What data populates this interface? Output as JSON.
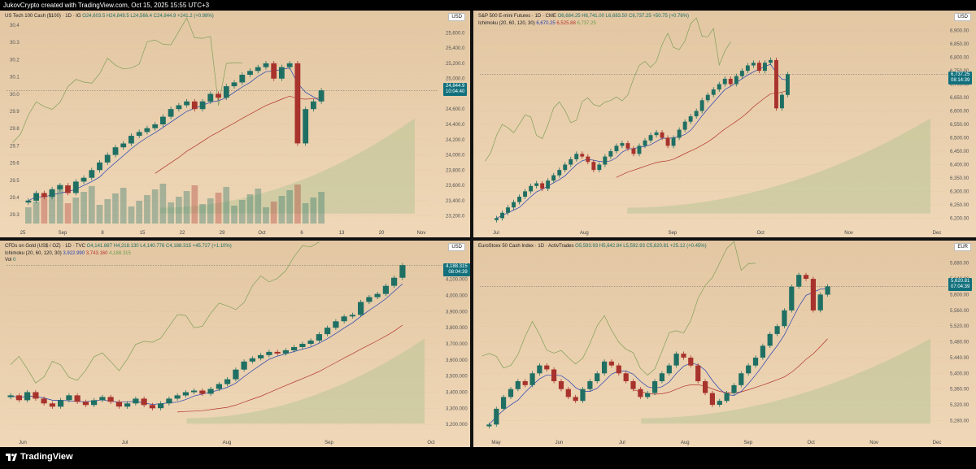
{
  "header": {
    "title": "JukovCrypto created with TradingView.com, Oct 15, 2025 15:55 UTC+3"
  },
  "footer": {
    "brand": "TradingView"
  },
  "colors": {
    "up": "#1f6f63",
    "down": "#a8322c",
    "tenkan": "#2541b2",
    "kijun": "#b2352d",
    "chikou": "#7fa05a",
    "cloud": "#b9c497",
    "bg": "#e9ceac"
  },
  "panes": [
    {
      "id": "ndx",
      "legend_line1": "US Tech 100 Cash ($100) · 1D · IG",
      "ohlc": "O24,603.5 H24,849.5 L24,566.4 C24,844.9 +241.2 (+0.98%)",
      "currency": "USD",
      "price_tag": "24,844.9",
      "price_tag_time": "10:04:40",
      "left_axis": [
        "30.4",
        "30.3",
        "30.2",
        "30.1",
        "30.0",
        "29.9",
        "29.8",
        "29.7",
        "29.6",
        "29.5",
        "29.4",
        "29.3"
      ],
      "right_axis": [
        "25,600.0",
        "25,400.0",
        "25,200.0",
        "25,000.0",
        "24,800.0",
        "24,600.0",
        "24,400.0",
        "24,200.0",
        "24,000.0",
        "23,800.0",
        "23,600.0",
        "23,400.0",
        "23,200.0"
      ],
      "x_labels": [
        "25",
        "Sep",
        "8",
        "15",
        "22",
        "29",
        "Oct",
        "6",
        "13",
        "20",
        "Nov"
      ]
    },
    {
      "id": "es",
      "legend_line1": "S&P 500 E-mini Futures · 1D · CME",
      "ohlc": "O6,684.25 H6,741.00 L6,683.50 C6,737.25 +50.75 (+0.76%)",
      "ichimoku_name": "Ichimoku (20, 60, 120, 30)",
      "ichimoku_v1": "6,670.25",
      "ichimoku_v2": "6,525.88",
      "ichimoku_v3": "6,737.25",
      "currency": "USD",
      "price_tag": "6,737.25",
      "price_tag_time": "08:14:39",
      "right_axis": [
        "6,900.00",
        "6,850.00",
        "6,800.00",
        "6,750.00",
        "6,700.00",
        "6,650.00",
        "6,600.00",
        "6,550.00",
        "6,500.00",
        "6,450.00",
        "6,400.00",
        "6,350.00",
        "6,300.00",
        "6,250.00",
        "6,200.00"
      ],
      "x_labels": [
        "Jul",
        "Aug",
        "Sep",
        "Oct",
        "Nov",
        "Dec"
      ]
    },
    {
      "id": "gold",
      "legend_line1": "CFDs on Gold (US$ / OZ) · 1D · TVC",
      "ohlc": "O4,141.887 H4,218.130 L4,140.776 C4,188.315 +45.727 (+1.10%)",
      "ichimoku_name": "Ichimoku (20, 60, 120, 30)",
      "ichimoku_v1": "3,922.990",
      "ichimoku_v2": "3,743.160",
      "ichimoku_v3": "4,188.315",
      "vol_label": "Vol",
      "vol_value": "0",
      "currency": "USD",
      "price_tag": "4,188.315",
      "price_tag_time": "08:04:39",
      "right_axis": [
        "4,100.000",
        "4,000.000",
        "3,900.000",
        "3,800.000",
        "3,700.000",
        "3,600.000",
        "3,500.000",
        "3,400.000",
        "3,300.000",
        "3,200.000"
      ],
      "x_labels": [
        "Jun",
        "Jul",
        "Aug",
        "Sep",
        "Oct"
      ]
    },
    {
      "id": "sx5e",
      "legend_line1": "EuroStoxx 50 Cash Index · 1D · ActivTrades",
      "ohlc": "O5,593.93 H5,642.84 L5,592.93 C5,620.81 +25.12 (+0.45%)",
      "currency": "EUR",
      "price_tag": "5,620.81",
      "price_tag_time": "07:04:39",
      "right_axis": [
        "5,680.00",
        "5,640.00",
        "5,600.00",
        "5,560.00",
        "5,520.00",
        "5,480.00",
        "5,440.00",
        "5,400.00",
        "5,360.00",
        "5,320.00",
        "5,280.00"
      ],
      "x_labels": [
        "May",
        "Jun",
        "Jul",
        "Aug",
        "Sep",
        "Oct",
        "Nov",
        "Dec"
      ]
    }
  ],
  "chart_data": [
    {
      "type": "candlestick",
      "title": "US Tech 100 Cash ($100) · 1D · IG",
      "ylim": [
        23100,
        25700
      ],
      "closes_approx": [
        23400,
        23500,
        23450,
        23550,
        23600,
        23500,
        23650,
        23700,
        23800,
        23900,
        24000,
        24100,
        24150,
        24250,
        24300,
        24350,
        24400,
        24500,
        24600,
        24650,
        24700,
        24600,
        24700,
        24800,
        24750,
        24900,
        24950,
        25050,
        25100,
        25150,
        25200,
        25000,
        25150,
        25200,
        24150,
        24600,
        24700,
        24844.9
      ],
      "last_close": 24844.9
    },
    {
      "type": "candlestick",
      "title": "S&P 500 E-mini Futures · 1D · CME",
      "ylim": [
        6180,
        6920
      ],
      "closes_approx": [
        6200,
        6220,
        6240,
        6260,
        6280,
        6300,
        6320,
        6330,
        6310,
        6340,
        6360,
        6380,
        6400,
        6420,
        6440,
        6430,
        6410,
        6380,
        6400,
        6430,
        6450,
        6470,
        6480,
        6460,
        6440,
        6470,
        6490,
        6510,
        6520,
        6500,
        6470,
        6500,
        6530,
        6560,
        6580,
        6600,
        6640,
        6660,
        6680,
        6700,
        6720,
        6700,
        6730,
        6750,
        6770,
        6780,
        6750,
        6780,
        6790,
        6610,
        6660,
        6737.25
      ],
      "last_close": 6737.25
    },
    {
      "type": "candlestick",
      "title": "CFDs on Gold (US$ / OZ) · 1D · TVC",
      "ylim": [
        3150,
        4250
      ],
      "closes_approx": [
        3380,
        3350,
        3400,
        3360,
        3330,
        3310,
        3350,
        3380,
        3340,
        3320,
        3350,
        3370,
        3340,
        3310,
        3330,
        3360,
        3320,
        3300,
        3330,
        3360,
        3380,
        3400,
        3410,
        3390,
        3420,
        3450,
        3480,
        3540,
        3590,
        3610,
        3630,
        3650,
        3640,
        3660,
        3680,
        3700,
        3720,
        3760,
        3800,
        3840,
        3870,
        3880,
        3960,
        3990,
        4010,
        4060,
        4110,
        4188.315
      ],
      "last_close": 4188.315
    },
    {
      "type": "candlestick",
      "title": "EuroStoxx 50 Cash Index · 1D · ActivTrades",
      "ylim": [
        5250,
        5700
      ],
      "closes_approx": [
        5270,
        5310,
        5340,
        5360,
        5380,
        5370,
        5400,
        5420,
        5410,
        5380,
        5360,
        5340,
        5330,
        5360,
        5380,
        5400,
        5430,
        5420,
        5400,
        5380,
        5360,
        5340,
        5350,
        5380,
        5400,
        5420,
        5450,
        5440,
        5420,
        5380,
        5350,
        5320,
        5330,
        5350,
        5370,
        5400,
        5420,
        5440,
        5470,
        5500,
        5520,
        5560,
        5620,
        5650,
        5640,
        5560,
        5600,
        5620.81
      ],
      "last_close": 5620.81
    }
  ]
}
